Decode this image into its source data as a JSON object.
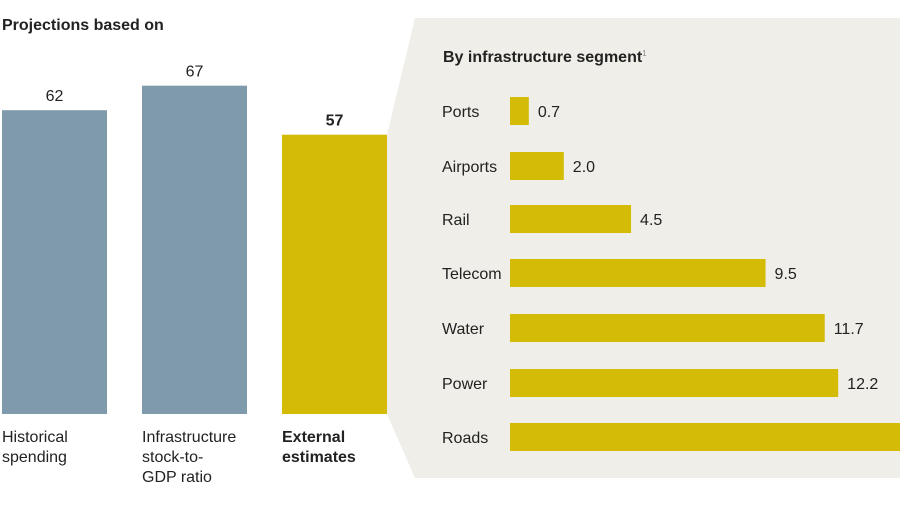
{
  "colors": {
    "gray_bar": "#7f9bab",
    "accent": "#d4bb06",
    "panel": "#efeee8",
    "text": "#222222"
  },
  "chart_data": [
    {
      "type": "bar",
      "title": "Projections based on",
      "categories": [
        "Historical spending",
        "Infrastructure stock-to-GDP ratio",
        "External estimates"
      ],
      "category_lines": [
        [
          "Historical",
          "spending"
        ],
        [
          "Infrastructure",
          "stock-to-",
          "GDP ratio"
        ],
        [
          "External",
          "estimates"
        ]
      ],
      "values": [
        62,
        67,
        57
      ],
      "highlight_index": 2,
      "ylim": [
        0,
        67
      ]
    },
    {
      "type": "bar",
      "orientation": "horizontal",
      "title": "By infrastructure segment",
      "title_footnote": "1",
      "categories": [
        "Ports",
        "Airports",
        "Rail",
        "Telecom",
        "Water",
        "Power",
        "Roads"
      ],
      "values": [
        0.7,
        2.0,
        4.5,
        9.5,
        11.7,
        12.2,
        16.4
      ],
      "value_labels": [
        "0.7",
        "2.0",
        "4.5",
        "9.5",
        "11.7",
        "12.2",
        ""
      ]
    }
  ]
}
